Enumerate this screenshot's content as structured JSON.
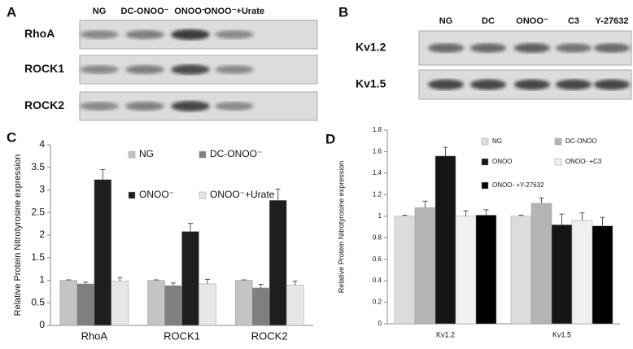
{
  "blots": [
    {
      "label": "A",
      "columns": [
        "NG",
        "DC-ONOO⁻",
        "ONOO⁻",
        "ONOO⁻+Urate"
      ],
      "rows": [
        "RhoA",
        "ROCK1",
        "ROCK2"
      ]
    },
    {
      "label": "B",
      "columns": [
        "NG",
        "DC",
        "ONOO⁻",
        "C3",
        "Y-27632"
      ],
      "rows": [
        "Kv1.2",
        "Kv1.5"
      ]
    }
  ],
  "chart_data": [
    {
      "type": "bar",
      "panel": "C",
      "ylabel": "Relative Protein Nitrotyrosine expression",
      "categories": [
        "RhoA",
        "ROCK1",
        "ROCK2"
      ],
      "series": [
        {
          "name": "NG",
          "color": "#c4c4c4",
          "values": [
            1.0,
            1.0,
            1.0
          ],
          "errors": [
            0.01,
            0.01,
            0.01
          ]
        },
        {
          "name": "DC-ONOO⁻",
          "color": "#7f7f7f",
          "values": [
            0.92,
            0.88,
            0.83
          ],
          "errors": [
            0.04,
            0.06,
            0.08
          ]
        },
        {
          "name": "ONOO⁻",
          "color": "#1e1e1e",
          "values": [
            3.23,
            2.08,
            2.77
          ],
          "errors": [
            0.22,
            0.18,
            0.25
          ]
        },
        {
          "name": "ONOO⁻+Urate",
          "color": "#e6e6e6",
          "values": [
            0.98,
            0.92,
            0.89
          ],
          "errors": [
            0.08,
            0.1,
            0.09
          ]
        }
      ],
      "ylim": [
        0,
        4
      ],
      "yticks": [
        0,
        0.5,
        1,
        1.5,
        2,
        2.5,
        3,
        3.5,
        4
      ],
      "grid": false,
      "legend": "top-right"
    },
    {
      "type": "bar",
      "panel": "D",
      "ylabel": "Relative Protein Nitrotyrosine expression",
      "categories": [
        "Kv1.2",
        "Kv1.5"
      ],
      "series": [
        {
          "name": "NG",
          "color": "#dcdcdc",
          "values": [
            1.0,
            1.0
          ],
          "errors": [
            0.01,
            0.01
          ]
        },
        {
          "name": "DC-ONOO",
          "color": "#b4b4b4",
          "values": [
            1.08,
            1.12
          ],
          "errors": [
            0.06,
            0.05
          ]
        },
        {
          "name": "ONOO",
          "color": "#151515",
          "values": [
            1.56,
            0.92
          ],
          "errors": [
            0.08,
            0.1
          ]
        },
        {
          "name": "ONOO- +C3",
          "color": "#f0f0f0",
          "values": [
            1.0,
            0.96
          ],
          "errors": [
            0.05,
            0.07
          ]
        },
        {
          "name": "ONOO- +Y-27632",
          "color": "#000000",
          "values": [
            1.01,
            0.91
          ],
          "errors": [
            0.05,
            0.08
          ]
        }
      ],
      "ylim": [
        0,
        1.8
      ],
      "yticks": [
        0,
        0.2,
        0.4,
        0.6,
        0.8,
        1,
        1.2,
        1.4,
        1.6,
        1.8
      ],
      "grid": false,
      "legend": "top-right"
    }
  ]
}
